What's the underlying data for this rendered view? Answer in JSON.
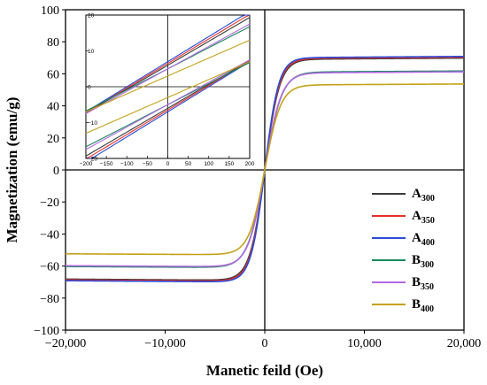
{
  "chart_data": [
    {
      "type": "line",
      "title": "",
      "xlabel": "Manetic feild (Oe)",
      "ylabel": "Magnetization (emu/g)",
      "xlim": [
        -20000,
        20000
      ],
      "ylim": [
        -100,
        100
      ],
      "xticks": [
        -20000,
        -10000,
        0,
        10000,
        20000
      ],
      "xtick_labels": [
        "−20,000",
        "−10,000",
        "0",
        "10,000",
        "20,000"
      ],
      "yticks": [
        -100,
        -80,
        -60,
        -40,
        -20,
        0,
        20,
        40,
        60,
        80,
        100
      ],
      "ytick_labels": [
        "−100",
        "−80",
        "−60",
        "−40",
        "−20",
        "0",
        "20",
        "40",
        "60",
        "80",
        "100"
      ],
      "legend_position": "right",
      "series": [
        {
          "name": "A300",
          "label_main": "A",
          "label_sub": "300",
          "color": "#3a3a3a",
          "Ms": 69,
          "Mr": 6,
          "Hc": 90,
          "a": 1500
        },
        {
          "name": "A350",
          "label_main": "A",
          "label_sub": "350",
          "color": "#e8302a",
          "Ms": 69.5,
          "Mr": 6.5,
          "Hc": 95,
          "a": 1450
        },
        {
          "name": "A400",
          "label_main": "A",
          "label_sub": "400",
          "color": "#2a4bd7",
          "Ms": 70,
          "Mr": 7,
          "Hc": 100,
          "a": 1400
        },
        {
          "name": "B300",
          "label_main": "B",
          "label_sub": "300",
          "color": "#178a5c",
          "Ms": 61,
          "Mr": 5,
          "Hc": 85,
          "a": 1700
        },
        {
          "name": "B350",
          "label_main": "B",
          "label_sub": "350",
          "color": "#b36ae2",
          "Ms": 60.5,
          "Mr": 5,
          "Hc": 80,
          "a": 1650
        },
        {
          "name": "B400",
          "label_main": "B",
          "label_sub": "400",
          "color": "#c4a21a",
          "Ms": 53,
          "Mr": 3,
          "Hc": 60,
          "a": 1600
        }
      ]
    },
    {
      "type": "line",
      "title": "",
      "xlabel": "",
      "ylabel": "",
      "xlim": [
        -200,
        200
      ],
      "ylim": [
        -20,
        20
      ],
      "xticks": [
        -200,
        -150,
        -100,
        -50,
        0,
        50,
        100,
        150,
        200
      ],
      "xtick_labels": [
        "−200",
        "−150",
        "−100",
        "−50",
        "0",
        "50",
        "100",
        "150",
        "200"
      ],
      "yticks": [
        -20,
        -10,
        0,
        10,
        20
      ],
      "ytick_labels": [
        "−20",
        "−10",
        "0",
        "10",
        "20"
      ]
    }
  ]
}
